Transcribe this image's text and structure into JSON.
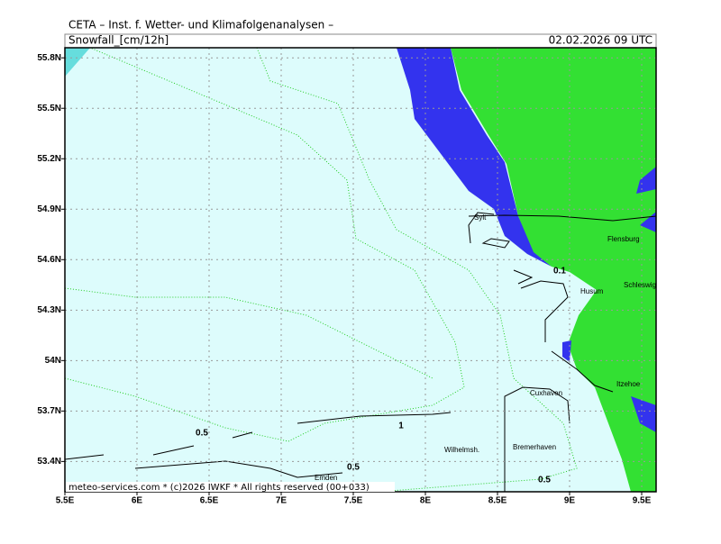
{
  "header": {
    "title": "CETA – Inst. f. Wetter- und Klimafolgenanalysen –",
    "parameter": "Snowfall_[cm/12h]",
    "valid_time": "02.02.2026 09 UTC"
  },
  "x_axis": {
    "lim": [
      5.5,
      9.6
    ],
    "ticks": [
      {
        "value": 5.5,
        "label": "5.5E"
      },
      {
        "value": 6,
        "label": "6E"
      },
      {
        "value": 6.5,
        "label": "6.5E"
      },
      {
        "value": 7,
        "label": "7E"
      },
      {
        "value": 7.5,
        "label": "7.5E"
      },
      {
        "value": 8,
        "label": "8E"
      },
      {
        "value": 8.5,
        "label": "8.5E"
      },
      {
        "value": 9,
        "label": "9E"
      },
      {
        "value": 9.5,
        "label": "9.5E"
      }
    ]
  },
  "y_axis": {
    "lim": [
      53.22,
      55.86
    ],
    "ticks": [
      {
        "value": 55.8,
        "label": "55.8N"
      },
      {
        "value": 55.5,
        "label": "55.5N"
      },
      {
        "value": 55.2,
        "label": "55.2N"
      },
      {
        "value": 54.9,
        "label": "54.9N"
      },
      {
        "value": 54.6,
        "label": "54.6N"
      },
      {
        "value": 54.3,
        "label": "54.3N"
      },
      {
        "value": 54,
        "label": "54N"
      },
      {
        "value": 53.7,
        "label": "53.7N"
      },
      {
        "value": 53.4,
        "label": "53.4N"
      }
    ]
  },
  "places": [
    "Sylt",
    "Flensburg",
    "Schleswig",
    "Husum",
    "Itzehoe",
    "Cuxhaven",
    "Bremerhaven",
    "Wilhelmsh.",
    "Emden"
  ],
  "contour_labels": [
    "0.1",
    "0.5",
    "1",
    "0.5",
    "0.5"
  ],
  "footer": "meteo-services.com * (c)2026 IWKF * All rights reserved (00+033)"
}
